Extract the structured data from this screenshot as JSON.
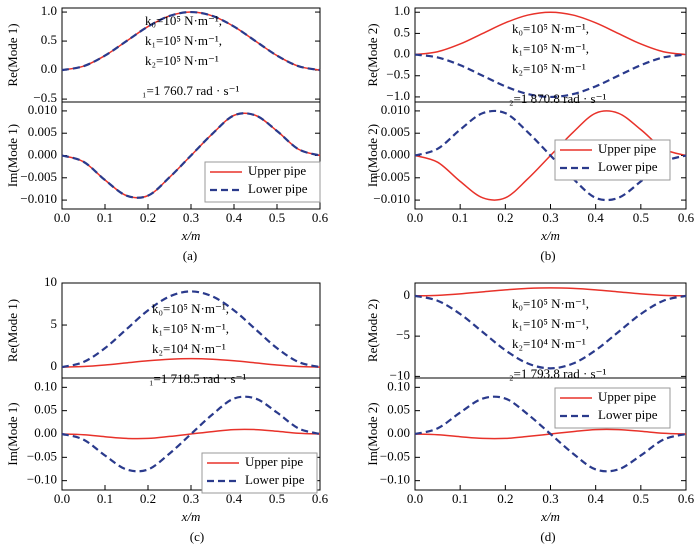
{
  "chart_data": [
    {
      "type": "line",
      "ylabel": "Re(Mode 1)",
      "xlim": [
        0,
        0.6
      ],
      "ylim": [
        -0.55,
        1.07
      ],
      "yticks": [
        {
          "value": 1,
          "label": "1.0"
        },
        {
          "value": 0.5,
          "label": "0.5"
        },
        {
          "value": 0,
          "label": "0.0"
        },
        {
          "value": -0.5,
          "label": "−0.5"
        }
      ],
      "annotations": [
        "k₀=10⁵ N·m⁻¹,",
        "k₁=10⁵ N·m⁻¹,",
        "k₂=10⁵ N·m⁻¹",
        "₁=1 760.7 rad · s⁻¹"
      ],
      "x": [
        0,
        0.05,
        0.1,
        0.15,
        0.2,
        0.25,
        0.3,
        0.35,
        0.4,
        0.45,
        0.5,
        0.55,
        0.6
      ],
      "series": [
        {
          "color": "#e8322a",
          "dash": false,
          "values": [
            0,
            0.067,
            0.25,
            0.5,
            0.75,
            0.933,
            1,
            0.933,
            0.75,
            0.5,
            0.25,
            0.067,
            0
          ]
        },
        {
          "color": "#2a3a8c",
          "dash": true,
          "values": [
            0,
            0.067,
            0.25,
            0.5,
            0.75,
            0.933,
            1,
            0.933,
            0.75,
            0.5,
            0.25,
            0.067,
            0
          ]
        }
      ]
    },
    {
      "type": "line",
      "ylabel": "Im(Mode 1)",
      "xlabel": "x/m",
      "caption": "(a)",
      "xlim": [
        0,
        0.6
      ],
      "ylim": [
        -0.012,
        0.012
      ],
      "yticks": [
        {
          "value": 0.01,
          "label": "0.010"
        },
        {
          "value": 0.005,
          "label": "0.005"
        },
        {
          "value": 0,
          "label": "0.000"
        },
        {
          "value": -0.005,
          "label": "−0.005"
        },
        {
          "value": -0.01,
          "label": "−0.010"
        }
      ],
      "xticks": [
        {
          "value": 0,
          "label": "0.0"
        },
        {
          "value": 0.1,
          "label": "0.1"
        },
        {
          "value": 0.2,
          "label": "0.2"
        },
        {
          "value": 0.3,
          "label": "0.3"
        },
        {
          "value": 0.4,
          "label": "0.4"
        },
        {
          "value": 0.5,
          "label": "0.5"
        },
        {
          "value": 0.6,
          "label": "0.6"
        }
      ],
      "x": [
        0,
        0.05,
        0.1,
        0.15,
        0.2,
        0.25,
        0.3,
        0.35,
        0.4,
        0.45,
        0.5,
        0.55,
        0.6
      ],
      "series": [
        {
          "name": "Upper pipe",
          "color": "#e8322a",
          "dash": false,
          "values": [
            0,
            -0.0014,
            -0.0055,
            -0.009,
            -0.009,
            -0.0049,
            0,
            0.0049,
            0.009,
            0.009,
            0.0055,
            0.0014,
            0
          ]
        },
        {
          "name": "Lower pipe",
          "color": "#2a3a8c",
          "dash": true,
          "values": [
            0,
            -0.0014,
            -0.0055,
            -0.009,
            -0.009,
            -0.0049,
            0,
            0.0049,
            0.009,
            0.009,
            0.0055,
            0.0014,
            0
          ]
        }
      ]
    },
    {
      "type": "line",
      "ylabel": "Re(Mode 2)",
      "xlim": [
        0,
        0.6
      ],
      "ylim": [
        -1.12,
        1.1
      ],
      "yticks": [
        {
          "value": 1,
          "label": "1.0"
        },
        {
          "value": 0.5,
          "label": "0.5"
        },
        {
          "value": 0,
          "label": "0.0"
        },
        {
          "value": -0.5,
          "label": "−0.5"
        },
        {
          "value": -1,
          "label": "−1.0"
        }
      ],
      "annotations": [
        "k₀=10⁵ N·m⁻¹,",
        "k₁=10⁵ N·m⁻¹,",
        "k₂=10⁵ N·m⁻¹",
        "₂=1 870.8 rad · s⁻¹"
      ],
      "x": [
        0,
        0.05,
        0.1,
        0.15,
        0.2,
        0.25,
        0.3,
        0.35,
        0.4,
        0.45,
        0.5,
        0.55,
        0.6
      ],
      "series": [
        {
          "color": "#e8322a",
          "dash": false,
          "values": [
            0,
            0.067,
            0.25,
            0.5,
            0.75,
            0.933,
            1,
            0.933,
            0.75,
            0.5,
            0.25,
            0.067,
            0
          ]
        },
        {
          "color": "#2a3a8c",
          "dash": true,
          "values": [
            0,
            -0.067,
            -0.25,
            -0.5,
            -0.75,
            -0.933,
            -1,
            -0.933,
            -0.75,
            -0.5,
            -0.25,
            -0.067,
            0
          ]
        }
      ]
    },
    {
      "type": "line",
      "ylabel": "Im(Mode 2)",
      "xlabel": "x/m",
      "caption": "(b)",
      "xlim": [
        0,
        0.6
      ],
      "ylim": [
        -0.012,
        0.012
      ],
      "yticks": [
        {
          "value": 0.01,
          "label": "0.010"
        },
        {
          "value": 0.005,
          "label": "0.005"
        },
        {
          "value": 0,
          "label": "0.000"
        },
        {
          "value": -0.005,
          "label": "−0.005"
        },
        {
          "value": -0.01,
          "label": "−0.010"
        }
      ],
      "xticks": [
        {
          "value": 0,
          "label": "0.0"
        },
        {
          "value": 0.1,
          "label": "0.1"
        },
        {
          "value": 0.2,
          "label": "0.2"
        },
        {
          "value": 0.3,
          "label": "0.3"
        },
        {
          "value": 0.4,
          "label": "0.4"
        },
        {
          "value": 0.5,
          "label": "0.5"
        },
        {
          "value": 0.6,
          "label": "0.6"
        }
      ],
      "x": [
        0,
        0.05,
        0.1,
        0.15,
        0.2,
        0.25,
        0.3,
        0.35,
        0.4,
        0.45,
        0.5,
        0.55,
        0.6
      ],
      "series": [
        {
          "name": "Upper pipe",
          "color": "#e8322a",
          "dash": false,
          "values": [
            0,
            -0.0015,
            -0.0058,
            -0.0095,
            -0.0095,
            -0.0052,
            0,
            0.0052,
            0.0095,
            0.0095,
            0.0058,
            0.0015,
            0
          ]
        },
        {
          "name": "Lower pipe",
          "color": "#2a3a8c",
          "dash": true,
          "values": [
            0,
            0.0015,
            0.0058,
            0.0095,
            0.0095,
            0.0052,
            0,
            -0.0052,
            -0.0095,
            -0.0095,
            -0.0058,
            -0.0015,
            0
          ]
        }
      ]
    },
    {
      "type": "line",
      "ylabel": "Re(Mode 1)",
      "xlim": [
        0,
        0.6
      ],
      "ylim": [
        -1.3,
        10
      ],
      "yticks": [
        {
          "value": 10,
          "label": "10"
        },
        {
          "value": 5,
          "label": "5"
        },
        {
          "value": 0,
          "label": "0"
        }
      ],
      "annotations": [
        "k₀=10⁵ N·m⁻¹,",
        "k₁=10⁵ N·m⁻¹,",
        "k₂=10⁴ N·m⁻¹",
        "₁=1 718.5 rad · s⁻¹"
      ],
      "x": [
        0,
        0.05,
        0.1,
        0.15,
        0.2,
        0.25,
        0.3,
        0.35,
        0.4,
        0.45,
        0.5,
        0.55,
        0.6
      ],
      "series": [
        {
          "color": "#e8322a",
          "dash": false,
          "values": [
            0,
            0.067,
            0.25,
            0.5,
            0.75,
            0.933,
            1,
            0.933,
            0.75,
            0.5,
            0.25,
            0.067,
            0
          ]
        },
        {
          "color": "#2a3a8c",
          "dash": true,
          "values": [
            0,
            0.6,
            2.25,
            4.5,
            6.75,
            8.4,
            9,
            8.4,
            6.75,
            4.5,
            2.25,
            0.6,
            0
          ]
        }
      ]
    },
    {
      "type": "line",
      "ylabel": "Im(Mode 1)",
      "xlabel": "x/m",
      "caption": "(c)",
      "xlim": [
        0,
        0.6
      ],
      "ylim": [
        -0.12,
        0.12
      ],
      "yticks": [
        {
          "value": 0.1,
          "label": "0.10"
        },
        {
          "value": 0.05,
          "label": "0.05"
        },
        {
          "value": 0,
          "label": "0.00"
        },
        {
          "value": -0.05,
          "label": "−0.05"
        },
        {
          "value": -0.1,
          "label": "−0.10"
        }
      ],
      "xticks": [
        {
          "value": 0,
          "label": "0.0"
        },
        {
          "value": 0.1,
          "label": "0.1"
        },
        {
          "value": 0.2,
          "label": "0.2"
        },
        {
          "value": 0.3,
          "label": "0.3"
        },
        {
          "value": 0.4,
          "label": "0.4"
        },
        {
          "value": 0.5,
          "label": "0.5"
        },
        {
          "value": 0.6,
          "label": "0.6"
        }
      ],
      "x": [
        0,
        0.05,
        0.1,
        0.15,
        0.2,
        0.25,
        0.3,
        0.35,
        0.4,
        0.45,
        0.5,
        0.55,
        0.6
      ],
      "series": [
        {
          "name": "Upper pipe",
          "color": "#e8322a",
          "dash": false,
          "values": [
            0,
            -0.0015,
            -0.0058,
            -0.0095,
            -0.0095,
            -0.0052,
            0,
            0.0052,
            0.0095,
            0.0095,
            0.0058,
            0.0015,
            0
          ]
        },
        {
          "name": "Lower pipe",
          "color": "#2a3a8c",
          "dash": true,
          "values": [
            0,
            -0.012,
            -0.046,
            -0.076,
            -0.076,
            -0.042,
            0,
            0.042,
            0.076,
            0.076,
            0.046,
            0.012,
            0
          ]
        }
      ]
    },
    {
      "type": "line",
      "ylabel": "Re(Mode 2)",
      "xlim": [
        0,
        0.6
      ],
      "ylim": [
        -10.2,
        1.6
      ],
      "yticks": [
        {
          "value": 0,
          "label": "0"
        },
        {
          "value": -5,
          "label": "−5"
        },
        {
          "value": -10,
          "label": "−10"
        }
      ],
      "annotations": [
        "k₀=10⁵ N·m⁻¹,",
        "k₁=10⁵ N·m⁻¹,",
        "k₂=10⁴ N·m⁻¹",
        "₂=1 793.8 rad · s⁻¹"
      ],
      "x": [
        0,
        0.05,
        0.1,
        0.15,
        0.2,
        0.25,
        0.3,
        0.35,
        0.4,
        0.45,
        0.5,
        0.55,
        0.6
      ],
      "series": [
        {
          "color": "#e8322a",
          "dash": false,
          "values": [
            0,
            0.067,
            0.25,
            0.5,
            0.75,
            0.933,
            1,
            0.933,
            0.75,
            0.5,
            0.25,
            0.067,
            0
          ]
        },
        {
          "color": "#2a3a8c",
          "dash": true,
          "values": [
            0,
            -0.6,
            -2.25,
            -4.5,
            -6.75,
            -8.4,
            -9,
            -8.4,
            -6.75,
            -4.5,
            -2.25,
            -0.6,
            0
          ]
        }
      ]
    },
    {
      "type": "line",
      "ylabel": "Im(Mode 2)",
      "xlabel": "x/m",
      "caption": "(d)",
      "xlim": [
        0,
        0.6
      ],
      "ylim": [
        -0.12,
        0.12
      ],
      "yticks": [
        {
          "value": 0.1,
          "label": "0.10"
        },
        {
          "value": 0.05,
          "label": "0.05"
        },
        {
          "value": 0,
          "label": "0.00"
        },
        {
          "value": -0.05,
          "label": "−0.05"
        },
        {
          "value": -0.1,
          "label": "−0.10"
        }
      ],
      "xticks": [
        {
          "value": 0,
          "label": "0.0"
        },
        {
          "value": 0.1,
          "label": "0.1"
        },
        {
          "value": 0.2,
          "label": "0.2"
        },
        {
          "value": 0.3,
          "label": "0.3"
        },
        {
          "value": 0.4,
          "label": "0.4"
        },
        {
          "value": 0.5,
          "label": "0.5"
        },
        {
          "value": 0.6,
          "label": "0.6"
        }
      ],
      "x": [
        0,
        0.05,
        0.1,
        0.15,
        0.2,
        0.25,
        0.3,
        0.35,
        0.4,
        0.45,
        0.5,
        0.55,
        0.6
      ],
      "series": [
        {
          "name": "Upper pipe",
          "color": "#e8322a",
          "dash": false,
          "values": [
            0,
            -0.0015,
            -0.0058,
            -0.0095,
            -0.0095,
            -0.0052,
            0,
            0.0052,
            0.0095,
            0.0095,
            0.0058,
            0.0015,
            0
          ]
        },
        {
          "name": "Lower pipe",
          "color": "#2a3a8c",
          "dash": true,
          "values": [
            0,
            0.012,
            0.046,
            0.076,
            0.076,
            0.042,
            0,
            -0.042,
            -0.076,
            -0.076,
            -0.046,
            -0.012,
            0
          ]
        }
      ]
    }
  ]
}
